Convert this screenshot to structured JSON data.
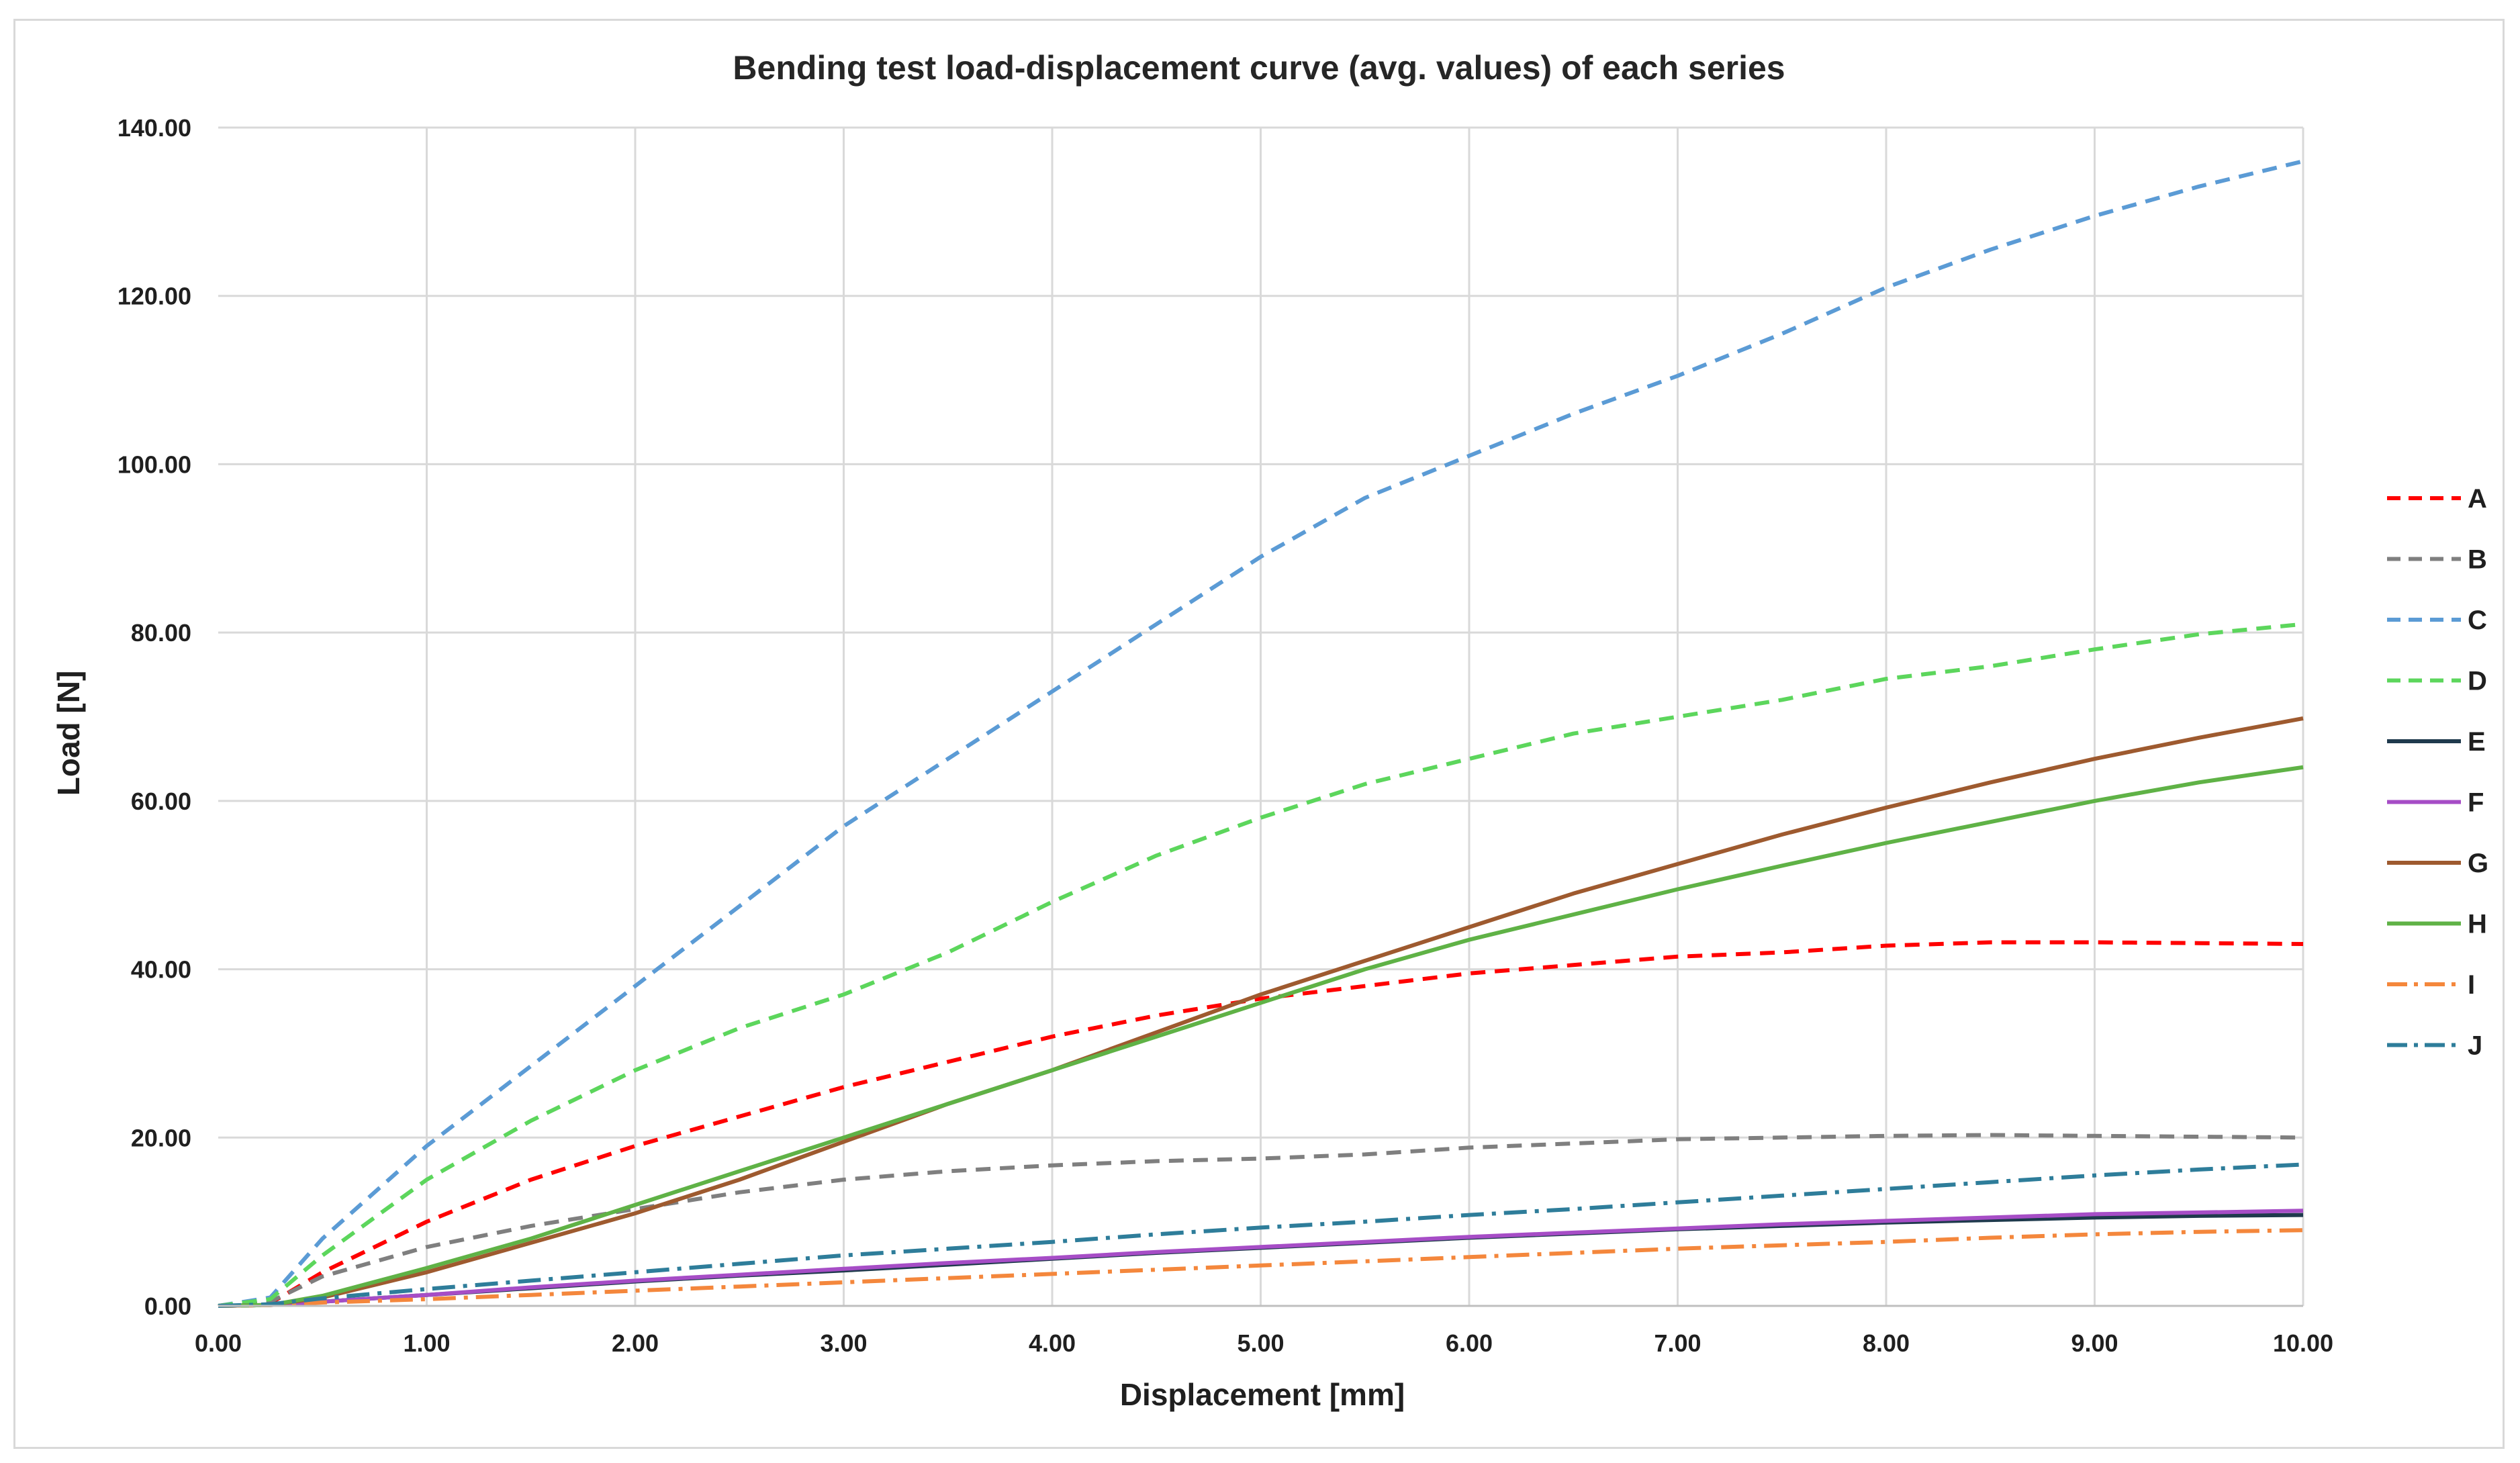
{
  "chart_data": {
    "type": "line",
    "title": "Bending test load-displacement  curve (avg. values) of each series",
    "xlabel": "Displacement [mm]",
    "ylabel": "Load [N]",
    "xlim": [
      0,
      10
    ],
    "ylim": [
      0,
      140
    ],
    "x_ticks": [
      "0.00",
      "1.00",
      "2.00",
      "3.00",
      "4.00",
      "5.00",
      "6.00",
      "7.00",
      "8.00",
      "9.00",
      "10.00"
    ],
    "y_ticks": [
      "0.00",
      "20.00",
      "40.00",
      "60.00",
      "80.00",
      "100.00",
      "120.00",
      "140.00"
    ],
    "grid": true,
    "legend_position": "right",
    "x": [
      0,
      0.25,
      0.5,
      1,
      1.5,
      2,
      2.5,
      3,
      3.5,
      4,
      4.5,
      5,
      5.5,
      6,
      6.5,
      7,
      7.5,
      8,
      8.5,
      9,
      9.5,
      10
    ],
    "series": [
      {
        "name": "A",
        "color": "#ff0000",
        "dash": "dash",
        "values": [
          0,
          0.3,
          4,
          10,
          15,
          19,
          22.5,
          26,
          29,
          32,
          34.5,
          36.5,
          38,
          39.5,
          40.5,
          41.5,
          42,
          42.8,
          43.2,
          43.2,
          43.1,
          43
        ]
      },
      {
        "name": "B",
        "color": "#7f7f7f",
        "dash": "dash",
        "values": [
          0,
          0.5,
          3.5,
          7,
          9.5,
          11.5,
          13.5,
          15,
          16,
          16.7,
          17.2,
          17.5,
          18,
          18.8,
          19.3,
          19.8,
          20,
          20.2,
          20.3,
          20.2,
          20.1,
          20
        ]
      },
      {
        "name": "C",
        "color": "#5b9bd5",
        "dash": "dash",
        "values": [
          0,
          1,
          8,
          19,
          28.5,
          38,
          47.5,
          57,
          65,
          73,
          81,
          89,
          96,
          101,
          106,
          110.5,
          115.5,
          121,
          125.5,
          129.5,
          133,
          136
        ]
      },
      {
        "name": "D",
        "color": "#5cd65c",
        "dash": "dash",
        "values": [
          0,
          0.8,
          6,
          15,
          22,
          28,
          33,
          37,
          42,
          48,
          53.5,
          58,
          62,
          65,
          68,
          70,
          72,
          74.5,
          76,
          78,
          79.8,
          81
        ]
      },
      {
        "name": "E",
        "color": "#1f3a4d",
        "dash": "solid",
        "values": [
          0,
          0.1,
          0.5,
          1.3,
          2.1,
          2.9,
          3.6,
          4.2,
          4.9,
          5.6,
          6.3,
          6.9,
          7.5,
          8.1,
          8.6,
          9.1,
          9.5,
          9.9,
          10.2,
          10.5,
          10.7,
          10.8
        ]
      },
      {
        "name": "F",
        "color": "#a64dc6",
        "dash": "solid",
        "values": [
          0,
          0.1,
          0.5,
          1.3,
          2.2,
          3,
          3.7,
          4.4,
          5.1,
          5.7,
          6.4,
          7,
          7.6,
          8.2,
          8.7,
          9.2,
          9.7,
          10.1,
          10.5,
          10.9,
          11.1,
          11.3
        ]
      },
      {
        "name": "G",
        "color": "#9e5a2f",
        "dash": "solid",
        "values": [
          0,
          0.1,
          1,
          4,
          7.5,
          11,
          15,
          19.5,
          24,
          28,
          32.5,
          37,
          41,
          45,
          49,
          52.5,
          56,
          59.2,
          62.2,
          65,
          67.5,
          69.8
        ]
      },
      {
        "name": "H",
        "color": "#5fb246",
        "dash": "solid",
        "values": [
          0,
          0.1,
          1.2,
          4.5,
          8,
          12,
          16,
          20,
          24,
          28,
          32,
          36,
          40,
          43.5,
          46.5,
          49.5,
          52.3,
          55,
          57.5,
          60,
          62.2,
          64
        ]
      },
      {
        "name": "I",
        "color": "#f4873c",
        "dash": "dashdot",
        "values": [
          0,
          0.1,
          0.4,
          0.8,
          1.3,
          1.8,
          2.3,
          2.8,
          3.3,
          3.8,
          4.3,
          4.8,
          5.3,
          5.8,
          6.3,
          6.8,
          7.2,
          7.6,
          8.1,
          8.5,
          8.8,
          9
        ]
      },
      {
        "name": "J",
        "color": "#2e7d9a",
        "dash": "dashdot",
        "values": [
          0,
          0.2,
          0.9,
          2,
          3,
          4,
          5,
          6,
          6.8,
          7.6,
          8.5,
          9.3,
          10,
          10.8,
          11.5,
          12.3,
          13.1,
          13.9,
          14.7,
          15.5,
          16.2,
          16.8
        ]
      }
    ]
  }
}
